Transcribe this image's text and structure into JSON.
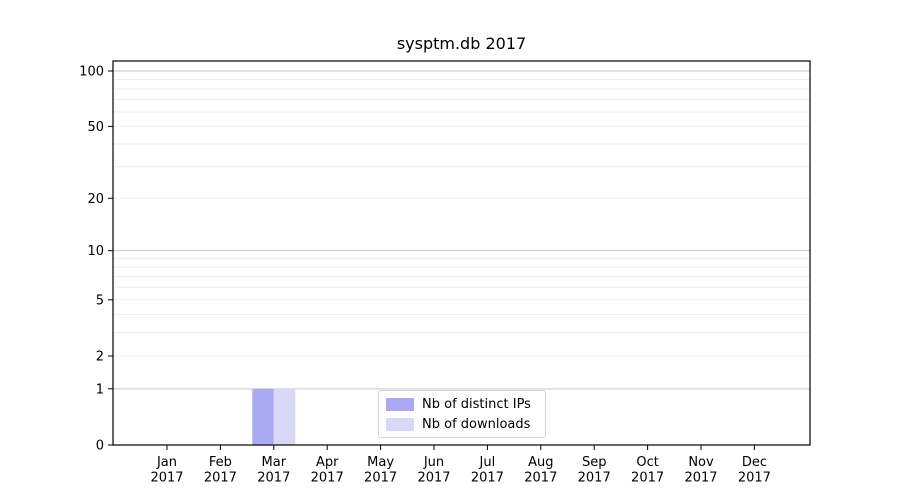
{
  "chart_data": {
    "type": "bar",
    "title": "sysptm.db 2017",
    "categories": [
      "Jan 2017",
      "Feb 2017",
      "Mar 2017",
      "Apr 2017",
      "May 2017",
      "Jun 2017",
      "Jul 2017",
      "Aug 2017",
      "Sep 2017",
      "Oct 2017",
      "Nov 2017",
      "Dec 2017"
    ],
    "series": [
      {
        "name": "Nb of distinct IPs",
        "color": "#a9a9f4",
        "values": [
          0,
          0,
          1,
          0,
          0,
          0,
          0,
          0,
          0,
          0,
          0,
          0
        ]
      },
      {
        "name": "Nb of downloads",
        "color": "#d9d9f7",
        "values": [
          0,
          0,
          1,
          0,
          0,
          0,
          0,
          0,
          0,
          0,
          0,
          0
        ]
      }
    ],
    "xlabel": "",
    "ylabel": "",
    "yscale": "log1p",
    "ylim": [
      0,
      100
    ],
    "yticks": [
      0,
      1,
      2,
      5,
      10,
      20,
      50,
      100
    ],
    "major_gridlines": [
      1,
      10,
      100
    ],
    "minor_gridlines": [
      2,
      3,
      4,
      5,
      6,
      7,
      8,
      9,
      20,
      30,
      40,
      50,
      60,
      70,
      80,
      90
    ],
    "grid": "horizontal",
    "legend_position": "lower center",
    "colors": {
      "major_grid": "#c6c6c6",
      "minor_grid": "#ededed",
      "spine": "#000000",
      "tick_text": "#000000",
      "background": "#ffffff"
    }
  }
}
